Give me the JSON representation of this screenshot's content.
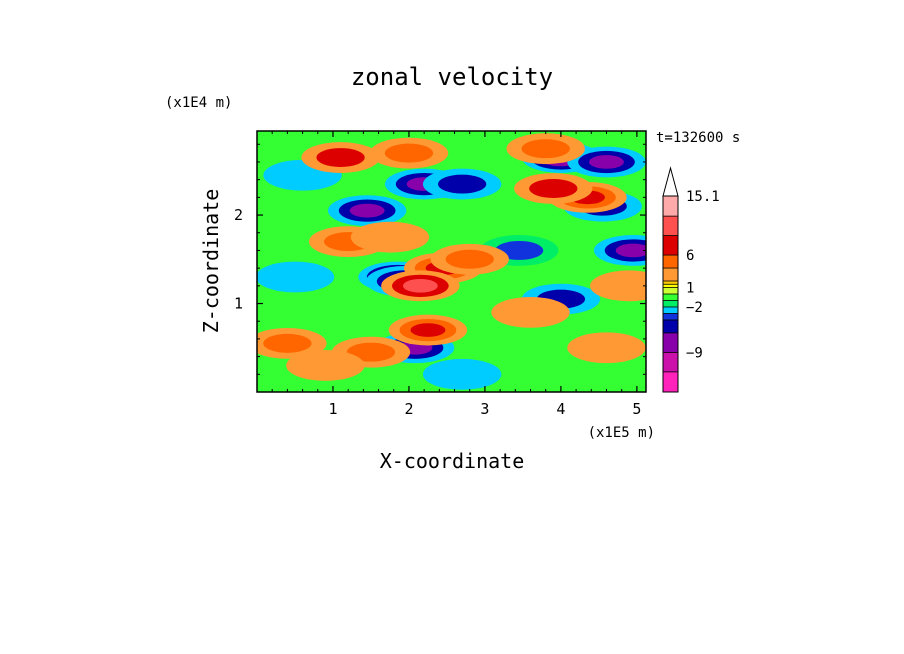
{
  "chart_data": {
    "type": "heatmap",
    "title": "zonal velocity",
    "xlabel": "X-coordinate",
    "ylabel": "Z-coordinate",
    "x_multiplier": "(x1E5 m)",
    "y_multiplier": "(x1E4 m)",
    "time_label": "t=132600 s",
    "xlim": [
      0,
      5.12
    ],
    "ylim": [
      0,
      2.95
    ],
    "x_ticks": [
      1,
      2,
      3,
      4,
      5
    ],
    "y_ticks": [
      1,
      2
    ],
    "colorbar": {
      "levels": [
        -15.1,
        -12,
        -9,
        -6,
        -4,
        -3,
        -2,
        -1,
        0,
        1,
        1.5,
        2,
        4,
        6,
        9,
        12,
        15.1
      ],
      "colors": [
        "#ff22bb",
        "#cc11aa",
        "#8800aa",
        "#0000aa",
        "#1133dd",
        "#00ccff",
        "#00ee66",
        "#33ff33",
        "#ccff33",
        "#ffff00",
        "#ffcc00",
        "#ff9933",
        "#ff6600",
        "#dd0000",
        "#ff5050",
        "#ffaaaa"
      ],
      "tick_labels": [
        "15.1",
        "6",
        "1",
        "−2",
        "−9"
      ],
      "tick_values": [
        15.1,
        6,
        1,
        -2,
        -9
      ],
      "extend": "max"
    },
    "field": {
      "description_only_for_render": false,
      "blobs": [
        {
          "x": 1.45,
          "z": 2.05,
          "value": -8
        },
        {
          "x": 2.2,
          "z": 2.35,
          "value": -9
        },
        {
          "x": 2.7,
          "z": 2.35,
          "value": -6
        },
        {
          "x": 4.0,
          "z": 2.65,
          "value": -10
        },
        {
          "x": 4.6,
          "z": 2.6,
          "value": -7
        },
        {
          "x": 1.85,
          "z": 1.3,
          "value": -10
        },
        {
          "x": 1.95,
          "z": 1.25,
          "value": -7
        },
        {
          "x": 2.08,
          "z": 0.5,
          "value": -9
        },
        {
          "x": 3.45,
          "z": 1.6,
          "value": -4
        },
        {
          "x": 4.95,
          "z": 1.6,
          "value": -8
        },
        {
          "x": 4.55,
          "z": 2.1,
          "value": -6
        },
        {
          "x": 4.0,
          "z": 1.05,
          "value": -5
        },
        {
          "x": 0.5,
          "z": 1.3,
          "value": -3
        },
        {
          "x": 0.6,
          "z": 2.45,
          "value": -3
        },
        {
          "x": 2.7,
          "z": 0.2,
          "value": -3
        },
        {
          "x": 1.1,
          "z": 2.65,
          "value": 6
        },
        {
          "x": 2.0,
          "z": 2.7,
          "value": 5
        },
        {
          "x": 3.8,
          "z": 2.75,
          "value": 4
        },
        {
          "x": 4.35,
          "z": 2.2,
          "value": 8
        },
        {
          "x": 3.9,
          "z": 2.3,
          "value": 6
        },
        {
          "x": 2.45,
          "z": 1.4,
          "value": 7
        },
        {
          "x": 2.15,
          "z": 1.2,
          "value": 9
        },
        {
          "x": 2.25,
          "z": 0.7,
          "value": 7
        },
        {
          "x": 2.8,
          "z": 1.5,
          "value": 5
        },
        {
          "x": 1.5,
          "z": 0.45,
          "value": 4
        },
        {
          "x": 1.2,
          "z": 1.7,
          "value": 4
        },
        {
          "x": 0.4,
          "z": 0.55,
          "value": 5
        },
        {
          "x": 0.9,
          "z": 0.3,
          "value": 3
        },
        {
          "x": 4.6,
          "z": 0.5,
          "value": 3
        },
        {
          "x": 3.6,
          "z": 0.9,
          "value": 2
        },
        {
          "x": 1.75,
          "z": 1.75,
          "value": 3
        },
        {
          "x": 4.9,
          "z": 1.2,
          "value": 3
        }
      ]
    }
  }
}
